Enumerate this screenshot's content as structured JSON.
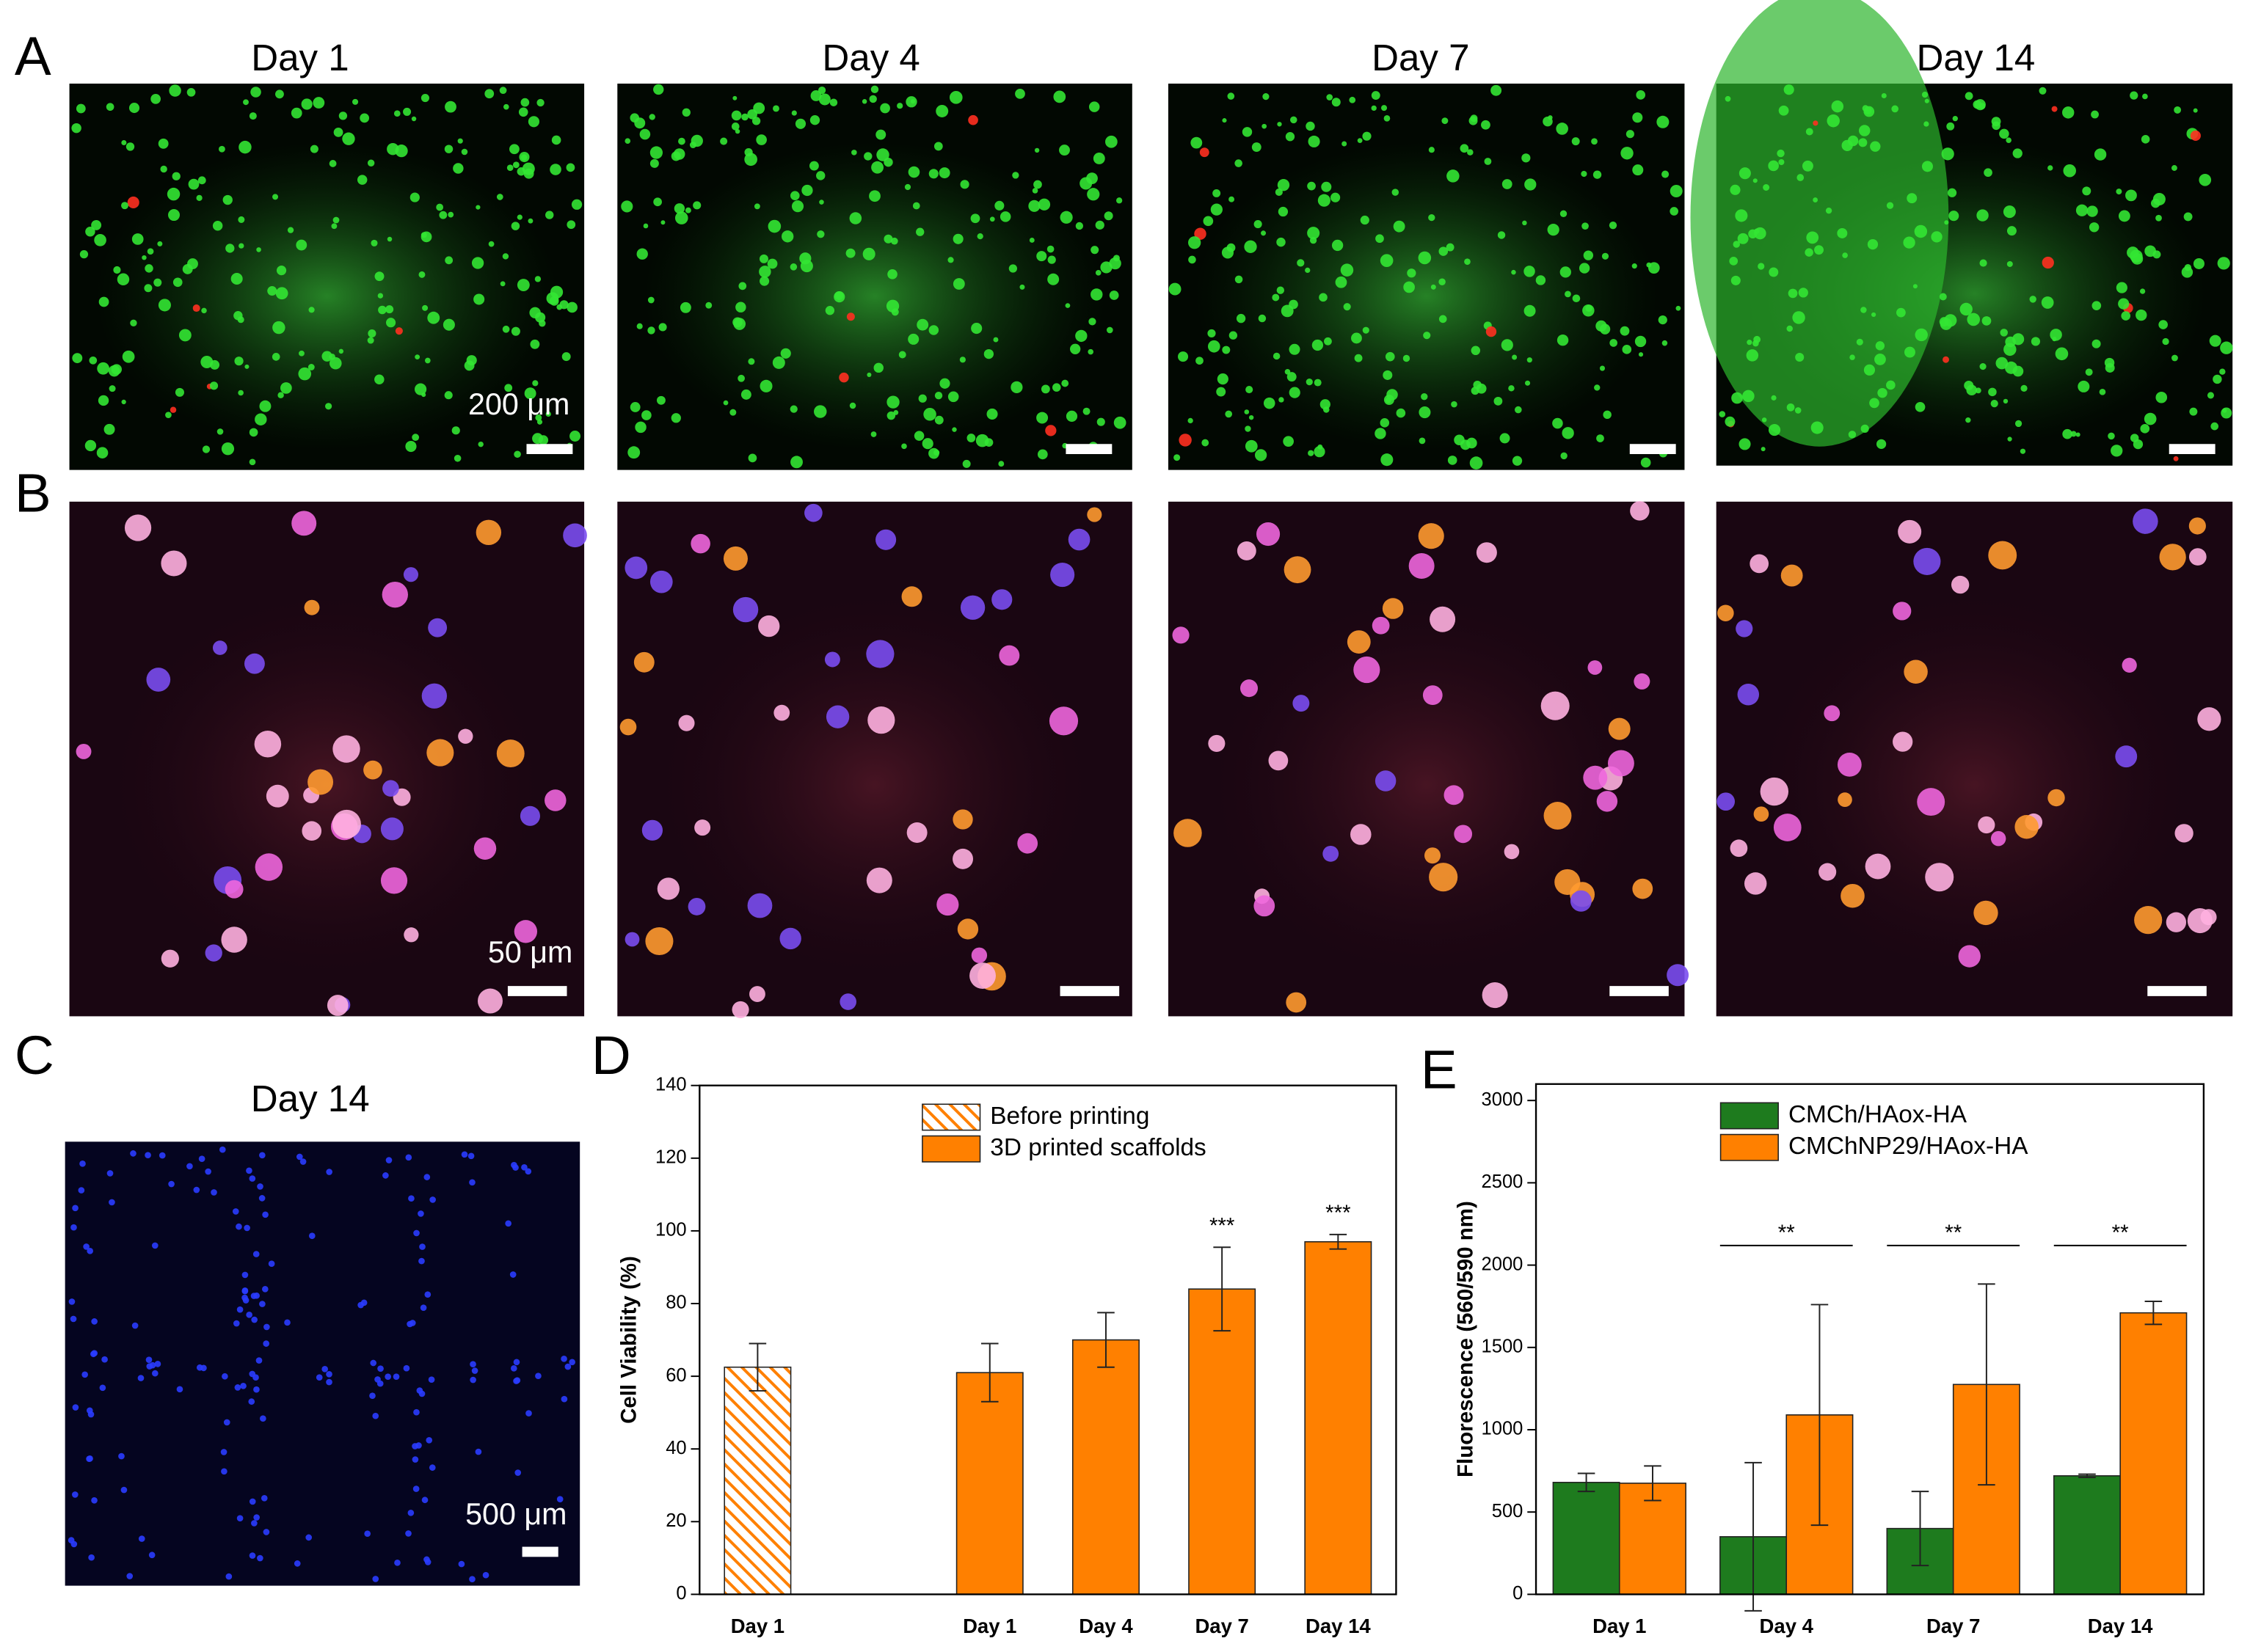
{
  "panel_letters": [
    "A",
    "B",
    "C",
    "D",
    "E"
  ],
  "day_titles": [
    "Day 1",
    "Day 4",
    "Day 7",
    "Day 14"
  ],
  "row_a_scale": "200 μm",
  "row_b_scale": "50 μm",
  "panel_c": {
    "title": "Day 14",
    "scale": "500 μm"
  },
  "chart_data": [
    {
      "type": "bar",
      "barmode": "overlay",
      "y_label": "Cell Viability (%)",
      "categories": [
        "Day 1",
        null,
        "Day 1",
        "Day 4",
        "Day 7",
        "Day 14"
      ],
      "ylim": [
        0,
        140
      ],
      "yticks": [
        0,
        20,
        40,
        60,
        80,
        100,
        120,
        140
      ],
      "legend": "upper center",
      "series": [
        {
          "name": "Before printing",
          "color": "#ff8000",
          "pattern": "hatch",
          "values": [
            62.5,
            null,
            null,
            null,
            null,
            null
          ],
          "errors": [
            6.5,
            null,
            null,
            null,
            null,
            null
          ]
        },
        {
          "name": "3D printed scaffolds",
          "color": "#ff8000",
          "values": [
            null,
            null,
            61,
            70,
            84,
            97
          ],
          "errors": [
            null,
            null,
            8,
            7.5,
            11.5,
            2
          ],
          "significance": [
            null,
            null,
            null,
            null,
            "***",
            "***"
          ]
        }
      ]
    },
    {
      "type": "bar",
      "barmode": "group",
      "y_label": "Fluorescence (560/590 nm)",
      "categories": [
        "Day 1",
        "Day 4",
        "Day 7",
        "Day 14"
      ],
      "ylim": [
        0,
        3100
      ],
      "yticks": [
        0,
        500,
        1000,
        1500,
        2000,
        2500,
        3000
      ],
      "legend": "upper left",
      "significance": [
        null,
        "**",
        "**",
        "**"
      ],
      "series": [
        {
          "name": "CMCh/HAox-HA",
          "color": "#1e7b1e",
          "values": [
            680,
            350,
            400,
            720
          ],
          "errors": [
            55,
            450,
            225,
            10
          ]
        },
        {
          "name": "CMChNP29/HAox-HA",
          "color": "#ff8000",
          "values": [
            675,
            1090,
            1275,
            1710
          ],
          "errors": [
            105,
            670,
            610,
            70
          ]
        }
      ]
    }
  ]
}
